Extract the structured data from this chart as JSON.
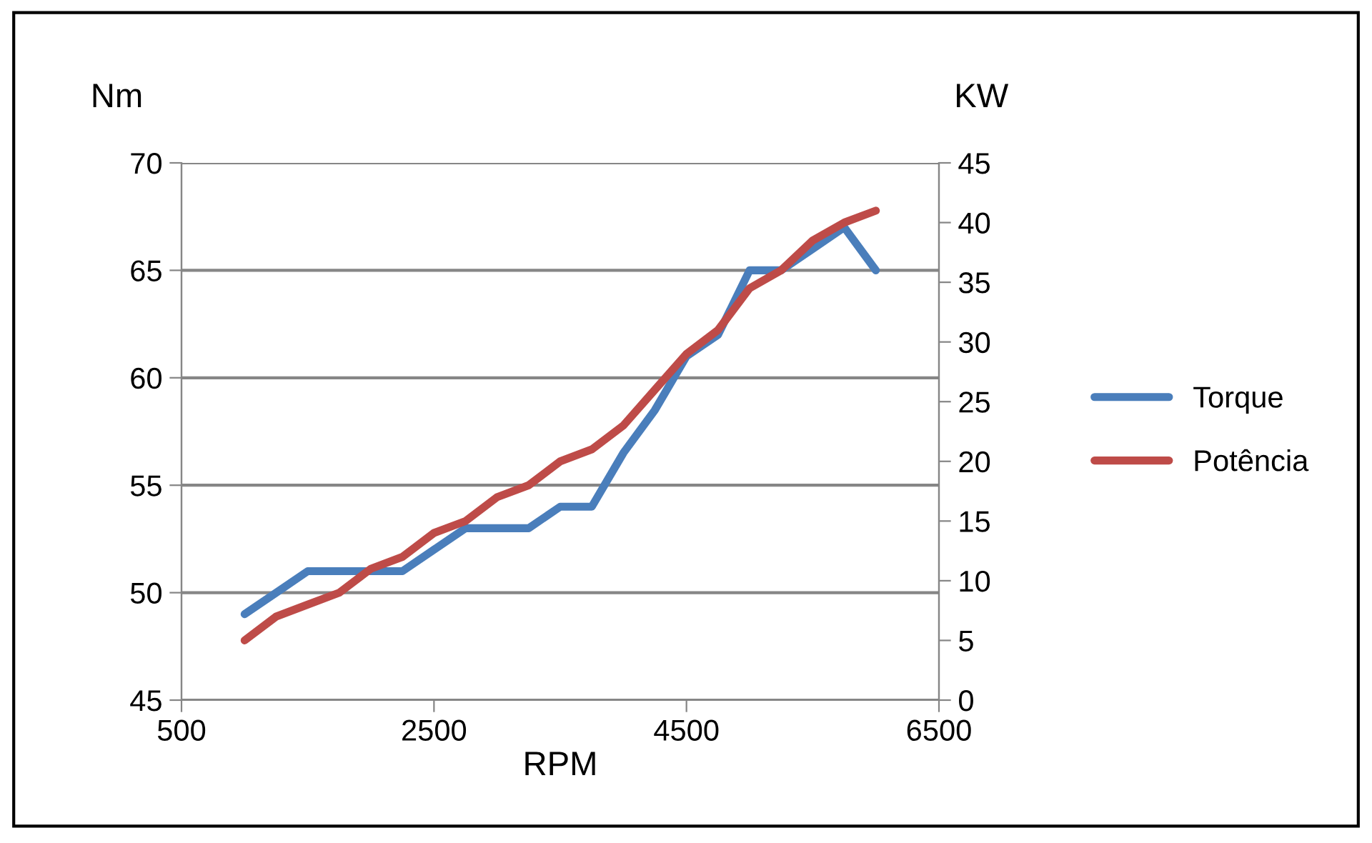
{
  "chart_data": {
    "type": "line",
    "xlabel": "RPM",
    "ylabel": "Nm",
    "y2label": "KW",
    "x": [
      1000,
      1250,
      1500,
      1750,
      2000,
      2250,
      2500,
      2750,
      3000,
      3250,
      3500,
      3750,
      4000,
      4250,
      4500,
      4750,
      5000,
      5250,
      5500,
      5750,
      6000
    ],
    "series": [
      {
        "name": "Torque",
        "color": "#4a7ebb",
        "values": [
          49,
          50,
          51,
          51,
          51,
          51,
          52,
          53,
          53,
          53,
          54,
          54,
          56.5,
          58.5,
          61,
          62,
          65,
          65,
          66,
          67,
          65
        ]
      },
      {
        "name": "Potência",
        "color": "#be4b48",
        "axis": "y2",
        "values": [
          5,
          7,
          8,
          9,
          11,
          12,
          14,
          15,
          17,
          18,
          20,
          21,
          23,
          26,
          29,
          31,
          34.5,
          36,
          38.5,
          40,
          41
        ]
      }
    ],
    "xlim": [
      500,
      6500
    ],
    "xticks": [
      500,
      2500,
      4500,
      6500
    ],
    "ylim": [
      45,
      70
    ],
    "yticks": [
      45,
      50,
      55,
      60,
      65,
      70
    ],
    "y2lim": [
      0,
      45
    ],
    "y2ticks": [
      0,
      5,
      10,
      15,
      20,
      25,
      30,
      35,
      40,
      45
    ],
    "grid": "y",
    "legend": "right",
    "marker": "none",
    "line_style": "solid"
  }
}
